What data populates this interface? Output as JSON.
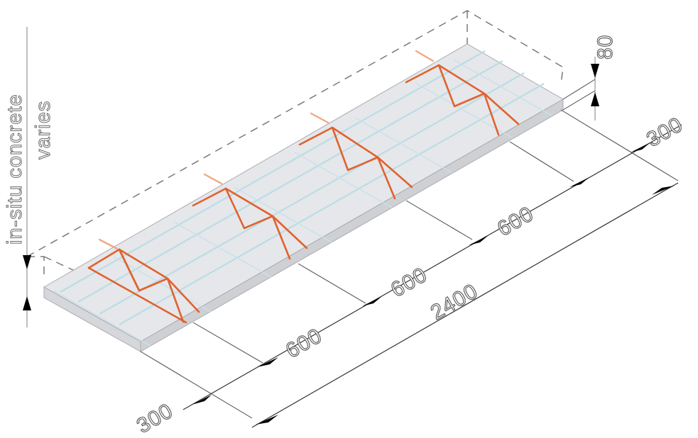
{
  "labels": {
    "concrete": "in-situ concrete",
    "varies": "varies",
    "thickness": "80",
    "end_spacing_left": "300",
    "end_spacing_right": "300",
    "spacing_1": "600",
    "spacing_2": "600",
    "spacing_3": "600",
    "overall_width": "2400"
  },
  "colors": {
    "truss": "#e0622f",
    "rebar": "#b9dde6",
    "slab": "#e6e7ea",
    "dimension": "#333333"
  }
}
